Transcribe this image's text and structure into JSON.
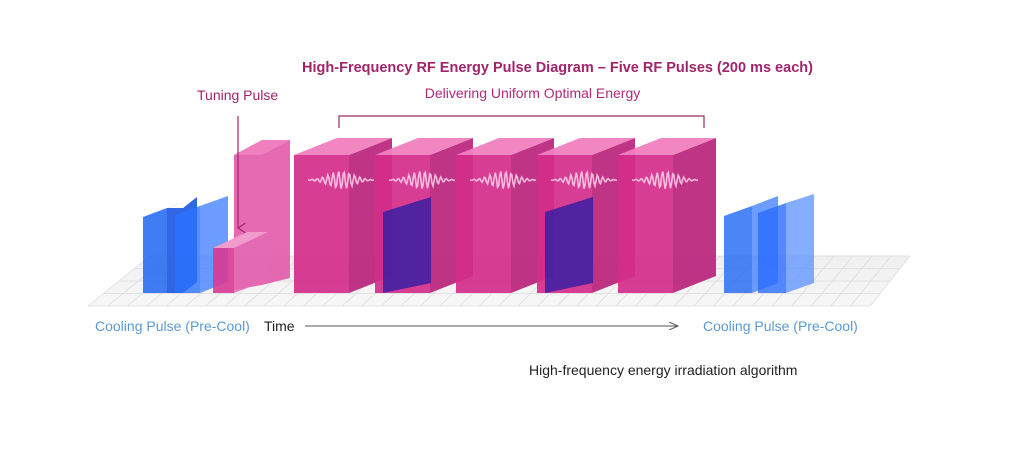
{
  "diagram": {
    "title": "High-Frequency RF Energy Pulse Diagram – Five RF Pulses (200 ms each)",
    "subtitle": "Delivering Uniform Optimal Energy",
    "tuning_label": "Tuning Pulse",
    "cooling_label_left": "Cooling Pulse (Pre-Cool)",
    "cooling_label_right": "Cooling Pulse (Pre-Cool)",
    "time_label": "Time",
    "caption": "High-frequency energy irradiation algorithm",
    "rf_pulse_count": 5,
    "colors": {
      "rf_pulse": "#d22c8a",
      "rf_pulse_side": "#b81e77",
      "rf_pulse_top": "#f07fc0",
      "cooling_pulse": "#1f66f2",
      "inner_panel": "#3b1fa3",
      "title": "#a1246b",
      "cooling_text": "#5a9ad4",
      "grid": "#dddddd"
    }
  }
}
